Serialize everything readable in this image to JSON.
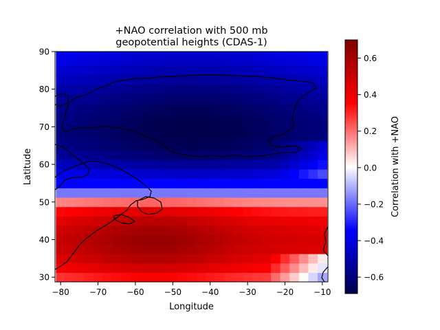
{
  "chart_data": {
    "type": "heatmap",
    "title_line1": "+NAO correlation with 500 mb",
    "title_line2": "geopotential heights (CDAS-1)",
    "xlabel": "Longitude",
    "ylabel": "Latitude",
    "xlim": [
      -81.5,
      -8.5
    ],
    "ylim": [
      28.75,
      90
    ],
    "xticks": [
      -80,
      -70,
      -60,
      -50,
      -40,
      -30,
      -20,
      -10
    ],
    "yticks": [
      30,
      40,
      50,
      60,
      70,
      80,
      90
    ],
    "grid": false,
    "colormap": "seismic",
    "colorbar": {
      "label": "Correlation with +NAO",
      "range": [
        -0.69,
        0.7
      ],
      "ticks": [
        -0.6,
        -0.4,
        -0.2,
        0.0,
        0.2,
        0.4,
        0.6
      ],
      "tick_labels": [
        "−0.6",
        "−0.4",
        "−0.2",
        "0.0",
        "0.2",
        "0.4",
        "0.6"
      ]
    },
    "grid_lon_step": 2.5,
    "grid_lat_step": 2.5,
    "lat_profile": {
      "lat": [
        30,
        32.5,
        35,
        37.5,
        40,
        42.5,
        45,
        47.5,
        50,
        52.5,
        55,
        57.5,
        60,
        62.5,
        65,
        67.5,
        70,
        72.5,
        75,
        77.5,
        80,
        82.5,
        85,
        87.5,
        90
      ],
      "values": [
        0.33,
        0.44,
        0.52,
        0.57,
        0.59,
        0.56,
        0.5,
        0.4,
        0.2,
        -0.18,
        -0.34,
        -0.43,
        -0.52,
        -0.6,
        -0.64,
        -0.66,
        -0.66,
        -0.65,
        -0.63,
        -0.6,
        -0.56,
        -0.52,
        -0.48,
        -0.44,
        -0.42
      ]
    },
    "coastline_note": "Greenland, eastern Canada and US east coast outlines",
    "colors": {
      "neg_max": "#00004c",
      "neg_mid": "#0000ff",
      "zero": "#ffffff",
      "pos_mid": "#ff0000",
      "pos_max": "#800000",
      "coast": "#000000"
    }
  }
}
